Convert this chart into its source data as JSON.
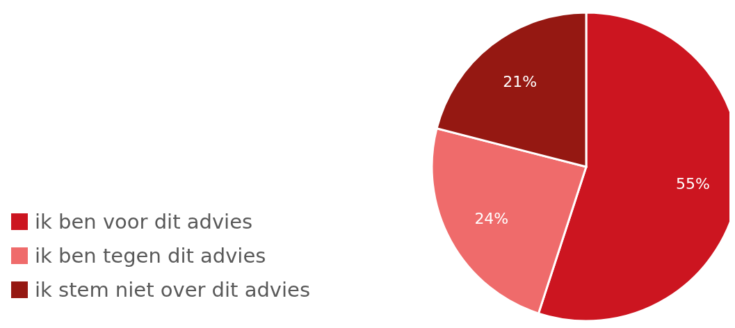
{
  "chart_data": {
    "type": "pie",
    "categories": [
      "ik ben voor dit advies",
      "ik ben tegen dit advies",
      "ik stem niet over dit advies"
    ],
    "values": [
      55,
      24,
      21
    ],
    "colors": [
      "#cc1520",
      "#ef6b6b",
      "#951812"
    ],
    "value_labels": [
      "55%",
      "24%",
      "21%"
    ],
    "legend": "bottom left"
  }
}
